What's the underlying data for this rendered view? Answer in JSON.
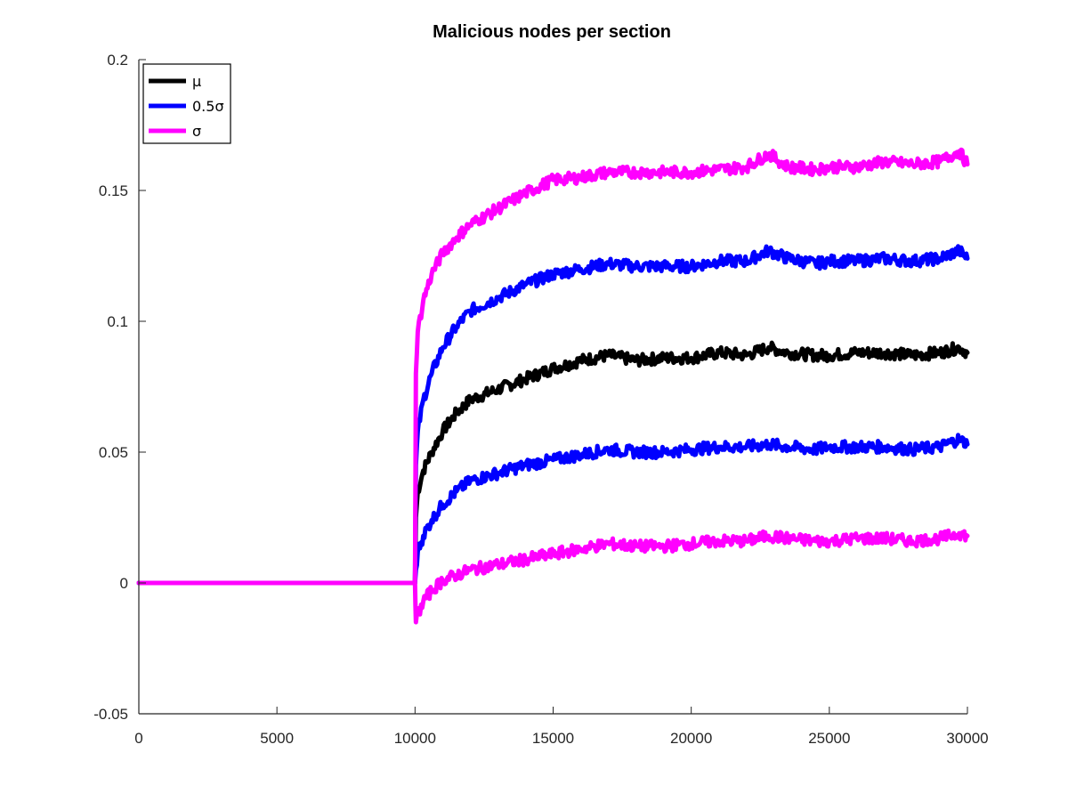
{
  "chart_data": {
    "type": "line",
    "title": "Malicious nodes per section",
    "xlabel": "",
    "ylabel": "",
    "xlim": [
      0,
      30000
    ],
    "ylim": [
      -0.05,
      0.2
    ],
    "x_ticks": [
      0,
      5000,
      10000,
      15000,
      20000,
      25000,
      30000
    ],
    "y_ticks": [
      -0.05,
      0,
      0.05,
      0.1,
      0.15,
      0.2
    ],
    "x_tick_labels": [
      "0",
      "5000",
      "10000",
      "15000",
      "20000",
      "25000",
      "30000"
    ],
    "y_tick_labels": [
      "-0.05",
      "0",
      "0.05",
      "0.1",
      "0.15",
      "0.2"
    ],
    "grid": false,
    "legend_position": "top-left",
    "legend": [
      {
        "label": "μ",
        "color": "#000000"
      },
      {
        "label": "0.5σ",
        "color": "#0000ff"
      },
      {
        "label": "σ",
        "color": "#ff00ff"
      }
    ],
    "series": [
      {
        "name": "μ",
        "color": "#000000",
        "x": [
          0,
          10000,
          10030,
          10100,
          10300,
          10600,
          11000,
          11500,
          12000,
          13000,
          14000,
          15000,
          16000,
          17000,
          18000,
          19000,
          20000,
          21000,
          22000,
          22800,
          23500,
          24500,
          25000,
          26000,
          27000,
          28000,
          29000,
          29700,
          30000
        ],
        "y": [
          0,
          0,
          0.025,
          0.035,
          0.043,
          0.05,
          0.058,
          0.065,
          0.07,
          0.074,
          0.078,
          0.082,
          0.085,
          0.087,
          0.085,
          0.086,
          0.086,
          0.088,
          0.087,
          0.09,
          0.088,
          0.087,
          0.087,
          0.088,
          0.088,
          0.087,
          0.088,
          0.09,
          0.088
        ]
      },
      {
        "name": "0.5σ (upper)",
        "color": "#0000ff",
        "x": [
          0,
          10000,
          10030,
          10100,
          10300,
          10600,
          11000,
          11500,
          12000,
          13000,
          14000,
          15000,
          16000,
          17000,
          18000,
          19000,
          20000,
          21000,
          22000,
          22800,
          23500,
          24500,
          25000,
          26000,
          27000,
          28000,
          29000,
          29700,
          30000
        ],
        "y": [
          0,
          0,
          0.045,
          0.058,
          0.07,
          0.08,
          0.09,
          0.098,
          0.104,
          0.109,
          0.114,
          0.118,
          0.12,
          0.122,
          0.121,
          0.121,
          0.121,
          0.123,
          0.123,
          0.127,
          0.124,
          0.122,
          0.123,
          0.123,
          0.124,
          0.123,
          0.124,
          0.127,
          0.124
        ]
      },
      {
        "name": "0.5σ (lower)",
        "color": "#0000ff",
        "x": [
          0,
          10000,
          10030,
          10100,
          10300,
          10600,
          11000,
          11500,
          12000,
          13000,
          14000,
          15000,
          16000,
          17000,
          18000,
          19000,
          20000,
          21000,
          22000,
          22800,
          23500,
          24500,
          25000,
          26000,
          27000,
          28000,
          29000,
          29700,
          30000
        ],
        "y": [
          0,
          0,
          0.005,
          0.012,
          0.018,
          0.024,
          0.03,
          0.035,
          0.039,
          0.042,
          0.045,
          0.047,
          0.049,
          0.051,
          0.05,
          0.05,
          0.051,
          0.052,
          0.052,
          0.053,
          0.052,
          0.051,
          0.052,
          0.052,
          0.052,
          0.051,
          0.052,
          0.055,
          0.053
        ]
      },
      {
        "name": "σ (upper)",
        "color": "#ff00ff",
        "x": [
          0,
          10000,
          10030,
          10100,
          10300,
          10600,
          11000,
          11500,
          12000,
          13000,
          14000,
          15000,
          16000,
          17000,
          18000,
          19000,
          20000,
          21000,
          22000,
          22800,
          23500,
          24500,
          25000,
          26000,
          27000,
          28000,
          29000,
          29700,
          30000
        ],
        "y": [
          0,
          0,
          0.08,
          0.096,
          0.108,
          0.118,
          0.126,
          0.132,
          0.137,
          0.143,
          0.149,
          0.154,
          0.155,
          0.157,
          0.157,
          0.157,
          0.157,
          0.158,
          0.159,
          0.164,
          0.159,
          0.158,
          0.159,
          0.159,
          0.161,
          0.16,
          0.161,
          0.165,
          0.16
        ]
      },
      {
        "name": "σ (lower)",
        "color": "#ff00ff",
        "x": [
          0,
          10000,
          10030,
          10100,
          10300,
          10600,
          11000,
          11500,
          12000,
          13000,
          14000,
          15000,
          16000,
          17000,
          18000,
          19000,
          20000,
          21000,
          22000,
          22800,
          23500,
          24500,
          25000,
          26000,
          27000,
          28000,
          29000,
          29700,
          30000
        ],
        "y": [
          0,
          0,
          -0.015,
          -0.012,
          -0.007,
          -0.003,
          0.001,
          0.003,
          0.005,
          0.007,
          0.009,
          0.011,
          0.013,
          0.015,
          0.014,
          0.014,
          0.015,
          0.016,
          0.016,
          0.018,
          0.017,
          0.016,
          0.016,
          0.017,
          0.017,
          0.016,
          0.017,
          0.019,
          0.018
        ]
      }
    ]
  }
}
